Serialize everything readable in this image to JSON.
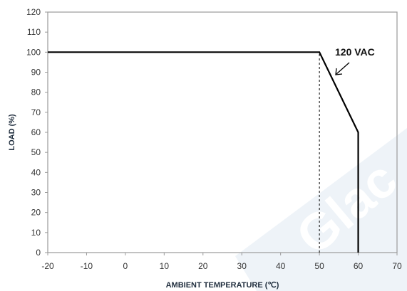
{
  "chart_data": {
    "type": "line",
    "title": "",
    "xlabel": "AMBIENT TEMPERATURE (℃)",
    "ylabel": "LOAD (%)",
    "xlim": [
      -20,
      70
    ],
    "ylim": [
      0,
      120
    ],
    "x_ticks": [
      -20,
      -10,
      0,
      10,
      20,
      30,
      40,
      50,
      60,
      70
    ],
    "y_ticks": [
      0,
      10,
      20,
      30,
      40,
      50,
      60,
      70,
      80,
      90,
      100,
      110,
      120
    ],
    "grid": false,
    "legend": "none",
    "series": [
      {
        "name": "120 VAC",
        "points": [
          [
            -20,
            100
          ],
          [
            50,
            100
          ],
          [
            60,
            60
          ],
          [
            60,
            0
          ]
        ]
      }
    ],
    "reference_lines": [
      {
        "orientation": "vertical",
        "x": 50,
        "from_y": 0,
        "to_y": 100,
        "style": "dashed"
      }
    ],
    "annotations": [
      {
        "text": "120 VAC",
        "target": "derating segment",
        "arrow": true
      }
    ],
    "watermark": "Glac",
    "colors": {
      "line": "#000000",
      "axis": "#999999",
      "watermark": "#e8eef5"
    }
  }
}
